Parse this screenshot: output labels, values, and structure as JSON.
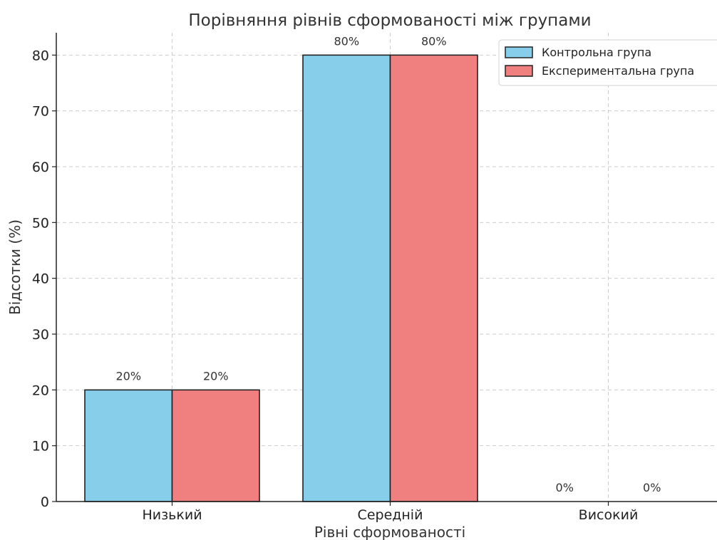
{
  "chart_data": {
    "type": "bar",
    "title": "Порівняння рівнів сформованості між групами",
    "xlabel": "Рівні сформованості",
    "ylabel": "Відсотки (%)",
    "categories": [
      "Низький",
      "Середній",
      "Високий"
    ],
    "series": [
      {
        "name": "Контрольна група",
        "values": [
          20,
          80,
          0
        ],
        "color": "#87ceeb"
      },
      {
        "name": "Експериментальна група",
        "values": [
          20,
          80,
          0
        ],
        "color": "#f08080"
      }
    ],
    "data_labels": [
      [
        "20%",
        "80%",
        "0%"
      ],
      [
        "20%",
        "80%",
        "0%"
      ]
    ],
    "ylim": [
      0,
      84
    ],
    "yticks": [
      0,
      10,
      20,
      30,
      40,
      50,
      60,
      70,
      80
    ],
    "grid": true,
    "legend_position": "top-right"
  }
}
